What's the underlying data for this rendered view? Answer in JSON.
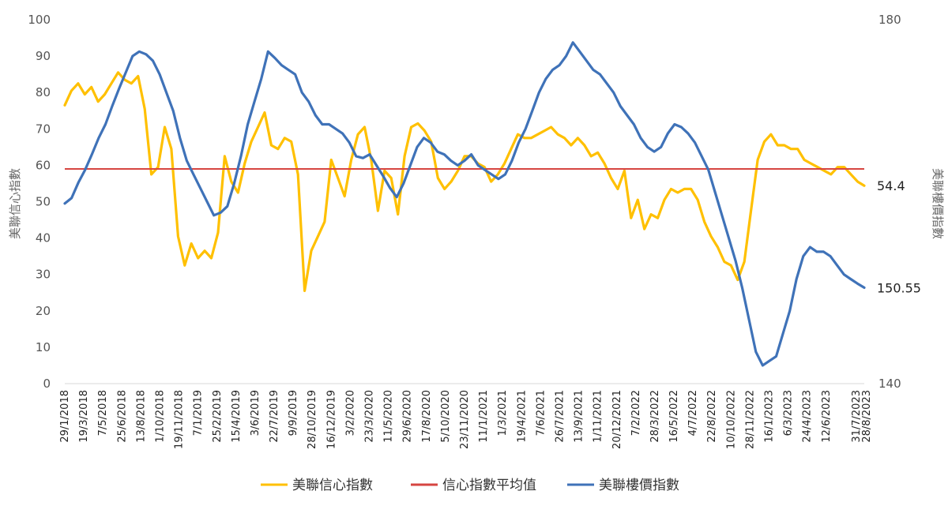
{
  "chart_data": {
    "type": "line",
    "title": "",
    "ylabel_left": "美聯信心指數",
    "ylabel_right": "美聯樓價指數",
    "ylim_left": [
      0,
      100
    ],
    "ylim_right": [
      140,
      180
    ],
    "yticks_left": [
      "0",
      "10",
      "20",
      "30",
      "40",
      "50",
      "60",
      "70",
      "80",
      "90",
      "100"
    ],
    "yticks_right": [
      "140",
      "180"
    ],
    "x_ticks": [
      "29/1/2018",
      "19/3/2018",
      "7/5/2018",
      "25/6/2018",
      "13/8/2018",
      "1/10/2018",
      "19/11/2018",
      "7/1/2019",
      "25/2/2019",
      "15/4/2019",
      "3/6/2019",
      "22/7/2019",
      "9/9/2019",
      "28/10/2019",
      "16/12/2019",
      "3/2/2020",
      "23/3/2020",
      "11/5/2020",
      "29/6/2020",
      "17/8/2020",
      "5/10/2020",
      "23/11/2020",
      "11/1/2021",
      "1/3/2021",
      "19/4/2021",
      "7/6/2021",
      "26/7/2021",
      "13/9/2021",
      "1/11/2021",
      "20/12/2021",
      "7/2/2022",
      "28/3/2022",
      "16/5/2022",
      "4/7/2022",
      "22/8/2022",
      "10/10/2022",
      "28/11/2022",
      "16/1/2023",
      "6/3/2023",
      "24/4/2023",
      "12/6/2023",
      "31/7/2023",
      "28/8/2023"
    ],
    "legend_position": "bottom",
    "grid": false,
    "series": [
      {
        "name": "美聯信心指數",
        "axis": "left",
        "color": "#FFC000",
        "end_label": "54.4",
        "values": [
          76.5,
          80.5,
          82.5,
          79.5,
          81.5,
          77.5,
          79.5,
          82.5,
          85.5,
          83.5,
          82.5,
          84.5,
          75.5,
          57.5,
          59.5,
          70.5,
          64.5,
          40.5,
          32.5,
          38.5,
          34.5,
          36.5,
          34.5,
          41.5,
          62.5,
          55.5,
          52.5,
          60.5,
          66.5,
          70.5,
          74.5,
          65.5,
          64.5,
          67.5,
          66.5,
          57.5,
          25.5,
          36.5,
          40.5,
          44.5,
          61.5,
          56.5,
          51.5,
          61.5,
          68.5,
          70.5,
          61.5,
          47.5,
          58.5,
          56.5,
          46.5,
          62.5,
          70.5,
          71.5,
          69.5,
          66.5,
          56.5,
          53.5,
          55.5,
          58.5,
          62.5,
          62.5,
          60.5,
          59.5,
          55.5,
          57.5,
          60.5,
          64.5,
          68.5,
          67.5,
          67.5,
          68.5,
          69.5,
          70.5,
          68.5,
          67.5,
          65.5,
          67.5,
          65.5,
          62.5,
          63.5,
          60.5,
          56.5,
          53.5,
          58.5,
          45.5,
          50.5,
          42.5,
          46.5,
          45.5,
          50.5,
          53.5,
          52.5,
          53.5,
          53.5,
          50.5,
          44.5,
          40.5,
          37.5,
          33.5,
          32.5,
          28.5,
          33.5,
          47.5,
          61.5,
          66.5,
          68.5,
          65.5,
          65.5,
          64.5,
          64.5,
          61.5,
          60.5,
          59.5,
          58.5,
          57.5,
          59.5,
          59.5,
          57.5,
          55.5,
          54.4
        ]
      },
      {
        "name": "信心指數平均值",
        "axis": "left",
        "color": "#D64541",
        "constant": 59
      },
      {
        "name": "美聯樓價指數",
        "axis": "right",
        "color": "#3F72B8",
        "end_label": "150.55",
        "values": [
          159.8,
          160.4,
          162.1,
          163.5,
          165.2,
          167.0,
          168.5,
          170.5,
          172.4,
          174.2,
          176.0,
          176.5,
          176.2,
          175.5,
          174.0,
          172.0,
          170.0,
          167.0,
          164.5,
          163.0,
          161.5,
          160.0,
          158.5,
          158.8,
          159.5,
          162.0,
          165.0,
          168.5,
          171.0,
          173.5,
          176.5,
          175.8,
          175.0,
          174.5,
          174.0,
          172.0,
          171.0,
          169.5,
          168.5,
          168.5,
          168.0,
          167.5,
          166.5,
          165.0,
          164.8,
          165.2,
          164.0,
          162.8,
          161.5,
          160.5,
          162.0,
          164.0,
          166.0,
          167.0,
          166.5,
          165.5,
          165.2,
          164.5,
          164.0,
          164.5,
          165.2,
          164.0,
          163.5,
          163.0,
          162.5,
          163.0,
          164.5,
          166.5,
          168.0,
          170.0,
          172.0,
          173.5,
          174.5,
          175.0,
          176.0,
          177.5,
          176.5,
          175.5,
          174.5,
          174.0,
          173.0,
          172.0,
          170.5,
          169.5,
          168.5,
          167.0,
          166.0,
          165.5,
          166.0,
          167.5,
          168.5,
          168.2,
          167.5,
          166.5,
          165.0,
          163.5,
          161.0,
          158.5,
          156.0,
          153.5,
          150.5,
          147.0,
          143.5,
          142.0,
          142.5,
          143.0,
          145.5,
          148.0,
          151.5,
          154.0,
          155.0,
          154.5,
          154.5,
          154.0,
          153.0,
          152.0,
          151.5,
          151.0,
          150.55
        ]
      }
    ]
  }
}
